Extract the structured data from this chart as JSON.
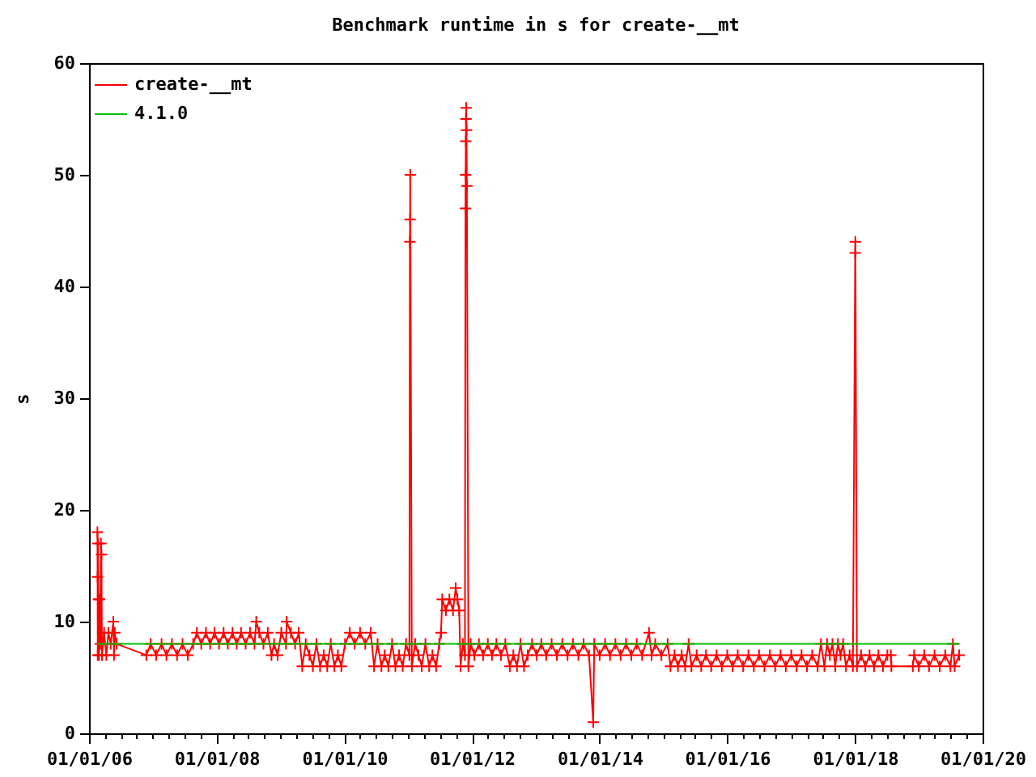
{
  "chart_data": {
    "type": "line",
    "title": "Benchmark runtime in s for create-__mt",
    "ylabel": "s",
    "xlim": [
      "2006-01-01",
      "2020-01-01"
    ],
    "xticks": [
      {
        "value": "2006-01-01",
        "label": "01/01/06"
      },
      {
        "value": "2006-04-01",
        "label": null
      },
      {
        "value": "2006-07-01",
        "label": null
      },
      {
        "value": "2006-10-01",
        "label": null
      },
      {
        "value": "2007-01-01",
        "label": null
      },
      {
        "value": "2007-04-01",
        "label": null
      },
      {
        "value": "2007-07-01",
        "label": null
      },
      {
        "value": "2007-10-01",
        "label": null
      },
      {
        "value": "2008-01-01",
        "label": "01/01/08"
      },
      {
        "value": "2008-04-01",
        "label": null
      },
      {
        "value": "2008-07-01",
        "label": null
      },
      {
        "value": "2008-10-01",
        "label": null
      },
      {
        "value": "2009-01-01",
        "label": null
      },
      {
        "value": "2009-04-01",
        "label": null
      },
      {
        "value": "2009-07-01",
        "label": null
      },
      {
        "value": "2009-10-01",
        "label": null
      },
      {
        "value": "2010-01-01",
        "label": "01/01/10"
      },
      {
        "value": "2010-04-01",
        "label": null
      },
      {
        "value": "2010-07-01",
        "label": null
      },
      {
        "value": "2010-10-01",
        "label": null
      },
      {
        "value": "2011-01-01",
        "label": null
      },
      {
        "value": "2011-04-01",
        "label": null
      },
      {
        "value": "2011-07-01",
        "label": null
      },
      {
        "value": "2011-10-01",
        "label": null
      },
      {
        "value": "2012-01-01",
        "label": "01/01/12"
      },
      {
        "value": "2012-04-01",
        "label": null
      },
      {
        "value": "2012-07-01",
        "label": null
      },
      {
        "value": "2012-10-01",
        "label": null
      },
      {
        "value": "2013-01-01",
        "label": null
      },
      {
        "value": "2013-04-01",
        "label": null
      },
      {
        "value": "2013-07-01",
        "label": null
      },
      {
        "value": "2013-10-01",
        "label": null
      },
      {
        "value": "2014-01-01",
        "label": "01/01/14"
      },
      {
        "value": "2014-04-01",
        "label": null
      },
      {
        "value": "2014-07-01",
        "label": null
      },
      {
        "value": "2014-10-01",
        "label": null
      },
      {
        "value": "2015-01-01",
        "label": null
      },
      {
        "value": "2015-04-01",
        "label": null
      },
      {
        "value": "2015-07-01",
        "label": null
      },
      {
        "value": "2015-10-01",
        "label": null
      },
      {
        "value": "2016-01-01",
        "label": "01/01/16"
      },
      {
        "value": "2016-04-01",
        "label": null
      },
      {
        "value": "2016-07-01",
        "label": null
      },
      {
        "value": "2016-10-01",
        "label": null
      },
      {
        "value": "2017-01-01",
        "label": null
      },
      {
        "value": "2017-04-01",
        "label": null
      },
      {
        "value": "2017-07-01",
        "label": null
      },
      {
        "value": "2017-10-01",
        "label": null
      },
      {
        "value": "2018-01-01",
        "label": "01/01/18"
      },
      {
        "value": "2018-04-01",
        "label": null
      },
      {
        "value": "2018-07-01",
        "label": null
      },
      {
        "value": "2018-10-01",
        "label": null
      },
      {
        "value": "2019-01-01",
        "label": null
      },
      {
        "value": "2019-04-01",
        "label": null
      },
      {
        "value": "2019-07-01",
        "label": null
      },
      {
        "value": "2019-10-01",
        "label": null
      },
      {
        "value": "2020-01-01",
        "label": "01/01/20"
      }
    ],
    "ylim": [
      0,
      60
    ],
    "yticks": [
      0,
      10,
      20,
      30,
      40,
      50,
      60
    ],
    "legend": "top left",
    "series": [
      {
        "name": "create-__mt",
        "color": "#ff0000",
        "marker": "cross",
        "x": [
          "2006-02-18",
          "2006-02-19",
          "2006-02-20",
          "2006-02-21",
          "2006-02-24",
          "2006-02-27",
          "2006-03-02",
          "2006-03-06",
          "2006-03-10",
          "2006-03-13",
          "2006-03-16",
          "2006-03-28",
          "2006-04-10",
          "2006-04-22",
          "2006-05-05",
          "2006-05-20",
          "2006-05-24",
          "2006-05-28",
          "2006-06-08",
          "2006-11-25",
          "2006-12-20",
          "2007-01-20",
          "2007-02-20",
          "2007-03-20",
          "2007-04-20",
          "2007-05-20",
          "2007-06-20",
          "2007-07-20",
          "2007-08-20",
          "2007-09-10",
          "2007-10-05",
          "2007-11-01",
          "2007-11-25",
          "2007-12-20",
          "2008-01-15",
          "2008-02-10",
          "2008-03-05",
          "2008-04-01",
          "2008-04-25",
          "2008-05-20",
          "2008-06-15",
          "2008-07-10",
          "2008-08-05",
          "2008-08-15",
          "2008-09-01",
          "2008-09-25",
          "2008-10-20",
          "2008-11-10",
          "2008-11-25",
          "2008-12-15",
          "2009-01-05",
          "2009-02-01",
          "2009-02-05",
          "2009-03-01",
          "2009-03-25",
          "2009-04-15",
          "2009-05-05",
          "2009-05-25",
          "2009-06-15",
          "2009-07-05",
          "2009-07-25",
          "2009-08-15",
          "2009-09-05",
          "2009-09-25",
          "2009-10-15",
          "2009-11-05",
          "2009-11-25",
          "2009-12-15",
          "2010-01-05",
          "2010-02-01",
          "2010-03-01",
          "2010-04-01",
          "2010-05-01",
          "2010-06-01",
          "2010-06-20",
          "2010-07-10",
          "2010-08-01",
          "2010-08-20",
          "2010-09-10",
          "2010-10-01",
          "2010-10-20",
          "2010-11-10",
          "2010-12-01",
          "2010-12-20",
          "2011-01-08",
          "2011-01-11",
          "2011-01-12",
          "2011-01-13",
          "2011-01-22",
          "2011-02-10",
          "2011-03-01",
          "2011-03-20",
          "2011-04-10",
          "2011-05-01",
          "2011-05-20",
          "2011-06-10",
          "2011-06-28",
          "2011-07-08",
          "2011-07-15",
          "2011-08-05",
          "2011-08-25",
          "2011-09-15",
          "2011-09-30",
          "2011-10-10",
          "2011-10-20",
          "2011-10-28",
          "2011-11-10",
          "2011-11-22",
          "2011-11-25",
          "2011-11-26",
          "2011-11-27",
          "2011-11-28",
          "2011-11-29",
          "2011-12-01",
          "2011-12-03",
          "2011-12-12",
          "2011-12-25",
          "2012-01-15",
          "2012-02-10",
          "2012-03-05",
          "2012-04-01",
          "2012-04-25",
          "2012-05-20",
          "2012-06-15",
          "2012-07-10",
          "2012-08-05",
          "2012-08-25",
          "2012-09-15",
          "2012-10-05",
          "2012-10-25",
          "2012-11-15",
          "2012-12-10",
          "2013-01-05",
          "2013-02-01",
          "2013-03-01",
          "2013-04-01",
          "2013-05-01",
          "2013-06-01",
          "2013-07-01",
          "2013-08-01",
          "2013-09-01",
          "2013-10-01",
          "2013-11-01",
          "2013-11-25",
          "2013-12-01",
          "2014-01-01",
          "2014-02-01",
          "2014-03-01",
          "2014-04-01",
          "2014-05-01",
          "2014-06-01",
          "2014-07-01",
          "2014-08-01",
          "2014-09-01",
          "2014-10-10",
          "2014-10-25",
          "2014-11-15",
          "2014-12-20",
          "2015-01-25",
          "2015-02-10",
          "2015-03-05",
          "2015-03-25",
          "2015-04-15",
          "2015-05-05",
          "2015-05-25",
          "2015-06-10",
          "2015-07-10",
          "2015-08-05",
          "2015-09-01",
          "2015-10-01",
          "2015-11-01",
          "2015-12-01",
          "2016-01-01",
          "2016-02-01",
          "2016-03-01",
          "2016-04-01",
          "2016-05-01",
          "2016-06-01",
          "2016-07-01",
          "2016-08-01",
          "2016-09-01",
          "2016-10-01",
          "2016-11-01",
          "2016-12-01",
          "2017-01-01",
          "2017-02-01",
          "2017-03-01",
          "2017-04-01",
          "2017-05-01",
          "2017-06-01",
          "2017-06-20",
          "2017-07-10",
          "2017-07-25",
          "2017-08-10",
          "2017-08-25",
          "2017-09-10",
          "2017-09-25",
          "2017-10-10",
          "2017-10-25",
          "2017-11-10",
          "2017-12-01",
          "2017-12-20",
          "2018-01-02",
          "2018-01-03",
          "2018-01-12",
          "2018-02-05",
          "2018-03-01",
          "2018-03-25",
          "2018-04-20",
          "2018-05-15",
          "2018-06-10",
          "2018-07-05",
          "2018-07-25",
          "2018-07-28",
          "2018-11-28",
          "2018-12-05",
          "2019-01-01",
          "2019-02-01",
          "2019-03-01",
          "2019-04-01",
          "2019-05-01",
          "2019-06-01",
          "2019-07-01",
          "2019-07-15",
          "2019-07-25",
          "2019-08-20"
        ],
        "values": [
          18,
          14,
          7,
          17,
          12,
          7,
          12,
          8,
          17,
          16,
          7,
          9,
          7,
          9,
          8,
          10,
          7,
          9,
          8,
          7,
          8,
          7,
          8,
          7,
          8,
          7,
          8,
          7,
          8,
          9,
          8,
          9,
          8,
          9,
          8,
          9,
          8,
          9,
          8,
          9,
          8,
          9,
          8,
          10,
          9,
          8,
          9,
          7,
          8,
          7,
          9,
          8,
          10,
          9,
          8,
          9,
          6,
          8,
          7,
          6,
          8,
          6,
          7,
          6,
          8,
          6,
          7,
          6,
          8,
          9,
          8,
          9,
          8,
          9,
          6,
          8,
          6,
          7,
          6,
          8,
          6,
          7,
          6,
          8,
          7,
          44,
          46,
          50,
          6,
          8,
          7,
          6,
          8,
          6,
          7,
          6,
          8,
          9,
          12,
          11,
          12,
          11,
          13,
          12,
          11,
          6,
          8,
          7,
          47,
          50,
          53,
          55,
          56,
          54,
          49,
          6,
          8,
          7,
          8,
          7,
          8,
          7,
          8,
          7,
          8,
          6,
          7,
          6,
          8,
          6,
          7,
          8,
          7,
          8,
          7,
          8,
          7,
          8,
          7,
          8,
          7,
          8,
          7,
          1,
          8,
          7,
          8,
          7,
          8,
          7,
          8,
          7,
          8,
          7,
          9,
          7,
          8,
          7,
          8,
          6,
          7,
          6,
          7,
          6,
          8,
          6,
          7,
          6,
          7,
          6,
          7,
          6,
          7,
          6,
          7,
          6,
          7,
          6,
          7,
          6,
          7,
          6,
          7,
          6,
          7,
          6,
          7,
          6,
          7,
          6,
          8,
          6,
          8,
          7,
          8,
          6,
          8,
          7,
          8,
          6,
          7,
          6,
          43,
          44,
          6,
          7,
          6,
          7,
          6,
          7,
          6,
          7,
          7,
          6,
          6,
          7,
          6,
          7,
          6,
          7,
          6,
          7,
          6,
          8,
          6,
          7
        ]
      },
      {
        "name": "4.1.0",
        "color": "#00c000",
        "x": [
          "2006-02-20",
          "2019-08-20"
        ],
        "values": [
          8,
          8
        ]
      }
    ]
  }
}
